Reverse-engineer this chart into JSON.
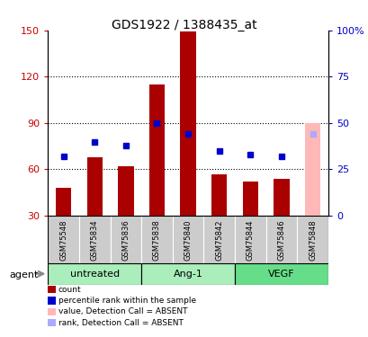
{
  "title": "GDS1922 / 1388435_at",
  "samples": [
    "GSM75548",
    "GSM75834",
    "GSM75836",
    "GSM75838",
    "GSM75840",
    "GSM75842",
    "GSM75844",
    "GSM75846",
    "GSM75848"
  ],
  "bar_values": [
    48,
    68,
    62,
    115,
    149,
    57,
    52,
    54,
    90
  ],
  "percentile_values": [
    32,
    40,
    38,
    50,
    44,
    35,
    33,
    32,
    44
  ],
  "absent_flags": [
    false,
    false,
    false,
    false,
    false,
    false,
    false,
    false,
    true
  ],
  "bar_color_normal": "#aa0000",
  "bar_color_absent": "#ffb8b8",
  "dot_color_normal": "#0000cc",
  "dot_color_absent": "#aaaaff",
  "ylim_left": [
    30,
    150
  ],
  "ylim_right": [
    0,
    100
  ],
  "yticks_left": [
    30,
    60,
    90,
    120,
    150
  ],
  "yticks_right": [
    0,
    25,
    50,
    75,
    100
  ],
  "ytick_labels_right": [
    "0",
    "25",
    "50",
    "75",
    "100%"
  ],
  "groups": [
    {
      "label": "untreated",
      "start": 0,
      "end": 2,
      "color": "#aaeebb"
    },
    {
      "label": "Ang-1",
      "start": 3,
      "end": 5,
      "color": "#aaeebb"
    },
    {
      "label": "VEGF",
      "start": 6,
      "end": 8,
      "color": "#66dd88"
    }
  ],
  "sample_bg_color": "#cccccc",
  "agent_label": "agent",
  "legend_items": [
    {
      "label": "count",
      "color": "#aa0000"
    },
    {
      "label": "percentile rank within the sample",
      "color": "#0000cc"
    },
    {
      "label": "value, Detection Call = ABSENT",
      "color": "#ffb8b8"
    },
    {
      "label": "rank, Detection Call = ABSENT",
      "color": "#aaaaff"
    }
  ],
  "grid_lines": [
    60,
    90,
    120
  ],
  "left_axis_color": "#cc0000",
  "right_axis_color": "#0000cc"
}
